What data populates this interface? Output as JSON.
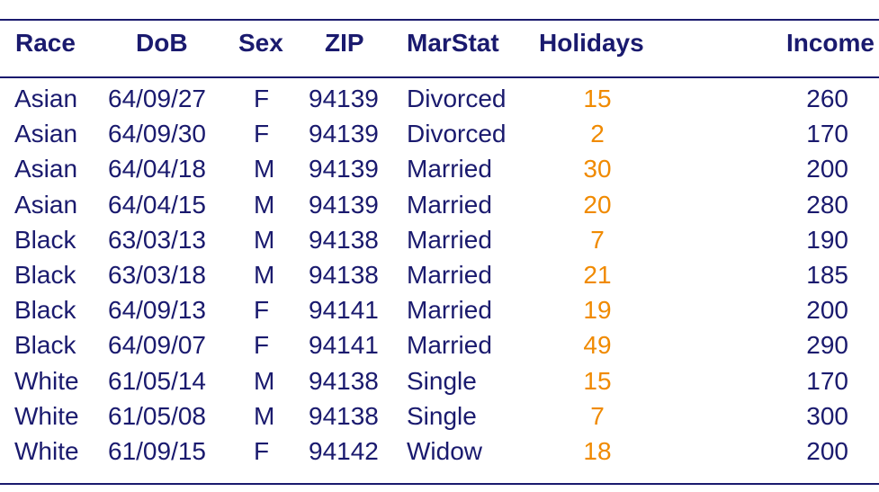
{
  "headers": {
    "race": "Race",
    "dob": "DoB",
    "sex": "Sex",
    "zip": "ZIP",
    "marstat": "MarStat",
    "holidays": "Holidays",
    "income": "Income"
  },
  "rows": [
    {
      "race": "Asian",
      "dob": "64/09/27",
      "sex": "F",
      "zip": "94139",
      "marstat": "Divorced",
      "holidays": "15",
      "income": "260"
    },
    {
      "race": "Asian",
      "dob": "64/09/30",
      "sex": "F",
      "zip": "94139",
      "marstat": "Divorced",
      "holidays": "2",
      "income": "170"
    },
    {
      "race": "Asian",
      "dob": "64/04/18",
      "sex": "M",
      "zip": "94139",
      "marstat": "Married",
      "holidays": "30",
      "income": "200"
    },
    {
      "race": "Asian",
      "dob": "64/04/15",
      "sex": "M",
      "zip": "94139",
      "marstat": "Married",
      "holidays": "20",
      "income": "280"
    },
    {
      "race": "Black",
      "dob": "63/03/13",
      "sex": "M",
      "zip": "94138",
      "marstat": "Married",
      "holidays": "7",
      "income": "190"
    },
    {
      "race": "Black",
      "dob": "63/03/18",
      "sex": "M",
      "zip": "94138",
      "marstat": "Married",
      "holidays": "21",
      "income": "185"
    },
    {
      "race": "Black",
      "dob": "64/09/13",
      "sex": "F",
      "zip": "94141",
      "marstat": "Married",
      "holidays": "19",
      "income": "200"
    },
    {
      "race": "Black",
      "dob": "64/09/07",
      "sex": "F",
      "zip": "94141",
      "marstat": "Married",
      "holidays": "49",
      "income": "290"
    },
    {
      "race": "White",
      "dob": "61/05/14",
      "sex": "M",
      "zip": "94138",
      "marstat": "Single",
      "holidays": "15",
      "income": "170"
    },
    {
      "race": "White",
      "dob": "61/05/08",
      "sex": "M",
      "zip": "94138",
      "marstat": "Single",
      "holidays": "7",
      "income": "300"
    },
    {
      "race": "White",
      "dob": "61/09/15",
      "sex": "F",
      "zip": "94142",
      "marstat": "Widow",
      "holidays": "18",
      "income": "200"
    }
  ],
  "colors": {
    "text": "#1a1a6e",
    "holidays": "#f08a00"
  }
}
